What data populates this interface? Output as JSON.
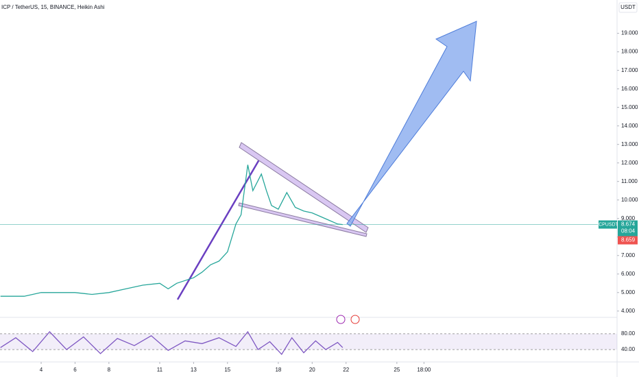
{
  "chart_data": [
    {
      "type": "line",
      "title": "ICP / TetherUS, 15, BINANCE, Heikin Ashi",
      "unit": "USDT",
      "symbol": "ICPUSDT",
      "last_price": 8.674,
      "countdown": "08:04",
      "prev_close": 8.659,
      "series": [
        {
          "name": "ICPUSDT",
          "color": "#26a69a",
          "x": [
            1.6,
            3,
            4,
            5,
            6,
            7,
            8,
            9,
            10,
            11,
            11.5,
            12,
            13,
            13.5,
            14,
            14.5,
            15,
            15.5,
            15.8,
            16.2,
            16.5,
            17,
            17.3,
            17.6,
            18,
            18.5,
            19,
            19.5,
            20,
            20.5,
            21,
            21.5,
            21.8
          ],
          "values": [
            4.8,
            4.8,
            5.0,
            5.0,
            5.0,
            4.9,
            5.0,
            5.2,
            5.4,
            5.5,
            5.2,
            5.5,
            5.8,
            6.1,
            6.5,
            6.7,
            7.2,
            8.7,
            9.2,
            11.9,
            10.5,
            11.4,
            10.5,
            9.7,
            9.5,
            10.4,
            9.6,
            9.4,
            9.3,
            9.1,
            8.9,
            8.7,
            8.67
          ]
        }
      ],
      "xlim": [
        1.57,
        38.0
      ],
      "ylim": [
        3.4,
        20.8
      ],
      "xticks": [
        4,
        6,
        8,
        11,
        13,
        15,
        18,
        20,
        22,
        25,
        {
          "value": 26.6,
          "label": "18:00"
        }
      ],
      "yticks": [
        {
          "value": 4,
          "label": "4.000"
        },
        {
          "value": 5,
          "label": "5.000"
        },
        {
          "value": 6,
          "label": "6.000"
        },
        {
          "value": 7,
          "label": "7.000"
        },
        {
          "value": 8,
          "label": "8.000"
        },
        {
          "value": 9,
          "label": "9.000"
        },
        {
          "value": 10,
          "label": "10.000"
        },
        {
          "value": 11,
          "label": "11.000"
        },
        {
          "value": 12,
          "label": "12.000"
        },
        {
          "value": 13,
          "label": "13.000"
        },
        {
          "value": 14,
          "label": "14.000"
        },
        {
          "value": 15,
          "label": "15.000"
        },
        {
          "value": 16,
          "label": "16.000"
        },
        {
          "value": 17,
          "label": "17.000"
        },
        {
          "value": 18,
          "label": "18.000"
        },
        {
          "value": 19,
          "label": "19.000"
        }
      ]
    },
    {
      "type": "line",
      "series": [
        {
          "name": "RSI",
          "color": "#7e57c2",
          "x": [
            1.6,
            2.5,
            3.5,
            4.5,
            5.5,
            6.5,
            7.5,
            8.5,
            9.5,
            10.5,
            11.5,
            12.5,
            13.5,
            14.5,
            15.5,
            16.2,
            16.8,
            17.5,
            18.2,
            18.8,
            19.5,
            20.2,
            20.8,
            21.5,
            21.8
          ],
          "values": [
            45,
            70,
            35,
            85,
            40,
            72,
            30,
            68,
            50,
            75,
            38,
            62,
            55,
            70,
            48,
            85,
            40,
            60,
            28,
            70,
            32,
            62,
            40,
            58,
            45
          ]
        }
      ],
      "xlim": [
        1.57,
        38.0
      ],
      "ylim": [
        14,
        118
      ],
      "yticks": [
        {
          "value": 80,
          "label": "80.00"
        },
        {
          "value": 40,
          "label": "40.00"
        }
      ]
    }
  ]
}
